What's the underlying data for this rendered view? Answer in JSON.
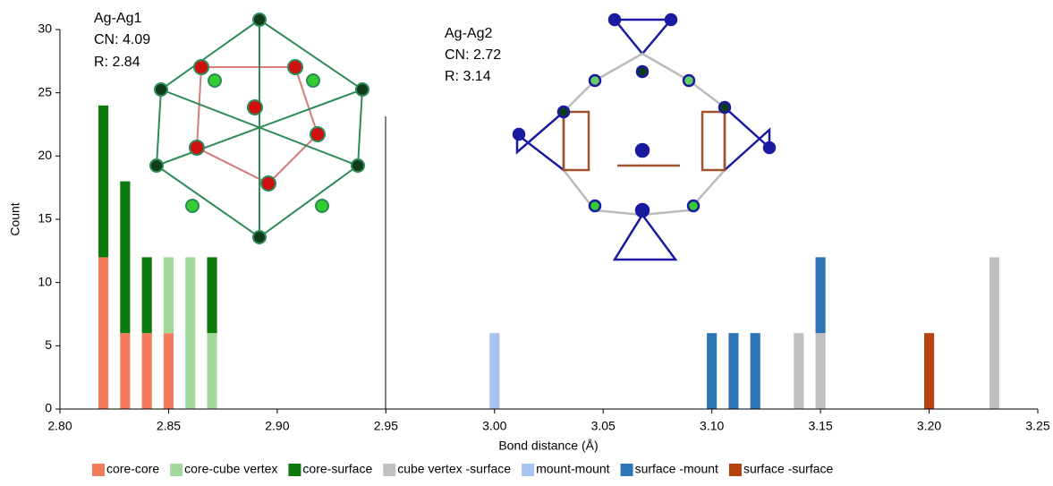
{
  "chart_data": {
    "type": "bar",
    "stacked": true,
    "xlabel": "Bond distance (Å)",
    "ylabel": "Count",
    "x": [
      2.82,
      2.83,
      2.84,
      2.85,
      2.86,
      2.87,
      3.0,
      3.1,
      3.11,
      3.12,
      3.14,
      3.15,
      3.2,
      3.23
    ],
    "series": [
      {
        "name": "core-core",
        "color": "#f47b5c",
        "values": [
          12,
          6,
          6,
          6,
          null,
          null,
          null,
          null,
          null,
          null,
          null,
          null,
          null,
          null
        ]
      },
      {
        "name": "core-cube vertex",
        "color": "#a3d99c",
        "values": [
          null,
          null,
          null,
          6,
          12,
          6,
          null,
          null,
          null,
          null,
          null,
          null,
          null,
          null
        ]
      },
      {
        "name": "core-surface",
        "color": "#0c7b0c",
        "values": [
          12,
          12,
          6,
          null,
          null,
          6,
          null,
          null,
          null,
          null,
          null,
          null,
          null,
          null
        ]
      },
      {
        "name": "cube vertex -surface",
        "color": "#c0c0c0",
        "values": [
          null,
          null,
          null,
          null,
          null,
          null,
          null,
          null,
          null,
          null,
          6,
          6,
          null,
          12
        ]
      },
      {
        "name": "mount-mount",
        "color": "#a7c3ef",
        "values": [
          null,
          null,
          null,
          null,
          null,
          null,
          6,
          null,
          null,
          null,
          null,
          null,
          null,
          null
        ]
      },
      {
        "name": "surface -mount",
        "color": "#2e75b6",
        "values": [
          null,
          null,
          null,
          null,
          null,
          null,
          null,
          6,
          6,
          6,
          null,
          6,
          null,
          null
        ]
      },
      {
        "name": "surface -surface",
        "color": "#b4410e",
        "values": [
          null,
          null,
          null,
          null,
          null,
          null,
          null,
          null,
          null,
          null,
          null,
          null,
          6,
          null
        ]
      }
    ],
    "xlim": [
      2.8,
      3.25
    ],
    "xticks": [
      {
        "value": 2.8,
        "label": "2.80"
      },
      2.85,
      {
        "value": 2.9,
        "label": "2.90"
      },
      2.95,
      {
        "value": 3.0,
        "label": "3.00"
      },
      3.05,
      {
        "value": 3.1,
        "label": "3.10"
      },
      3.15,
      {
        "value": 3.2,
        "label": "3.20"
      },
      3.25
    ],
    "ylim": [
      0,
      30
    ],
    "yticks": [
      0,
      5,
      10,
      15,
      20,
      25,
      30
    ],
    "annotations": [
      "Ag-Ag1",
      "CN: 4.09",
      "R: 2.84",
      "Ag-Ag2",
      "CN: 2.72",
      "R: 3.14"
    ]
  }
}
